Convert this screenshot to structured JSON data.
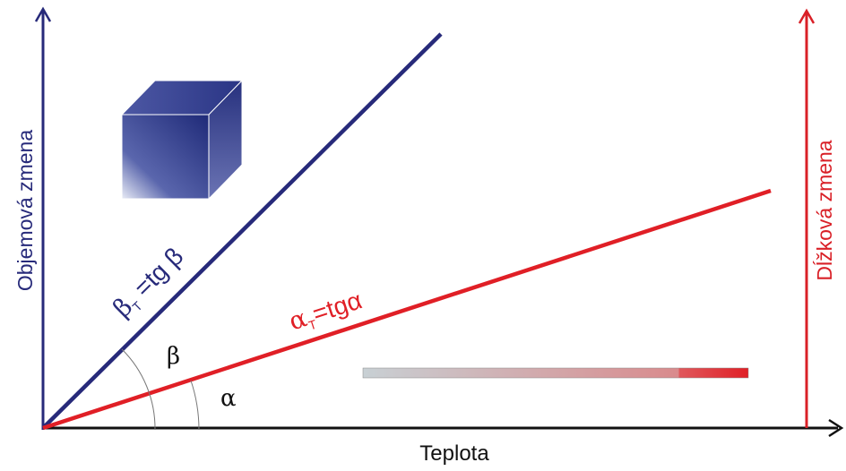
{
  "axes": {
    "left_label": "Objemová zmena",
    "right_label": "Dĺžková zmena",
    "bottom_label": "Teplota"
  },
  "lines": {
    "volume": {
      "symbol": "β",
      "subscript": "T",
      "rest": " =tg β"
    },
    "linear": {
      "symbol": "α",
      "subscript": "T",
      "rest": "=tgα"
    }
  },
  "angles": {
    "beta": "β",
    "alpha": "α"
  }
}
